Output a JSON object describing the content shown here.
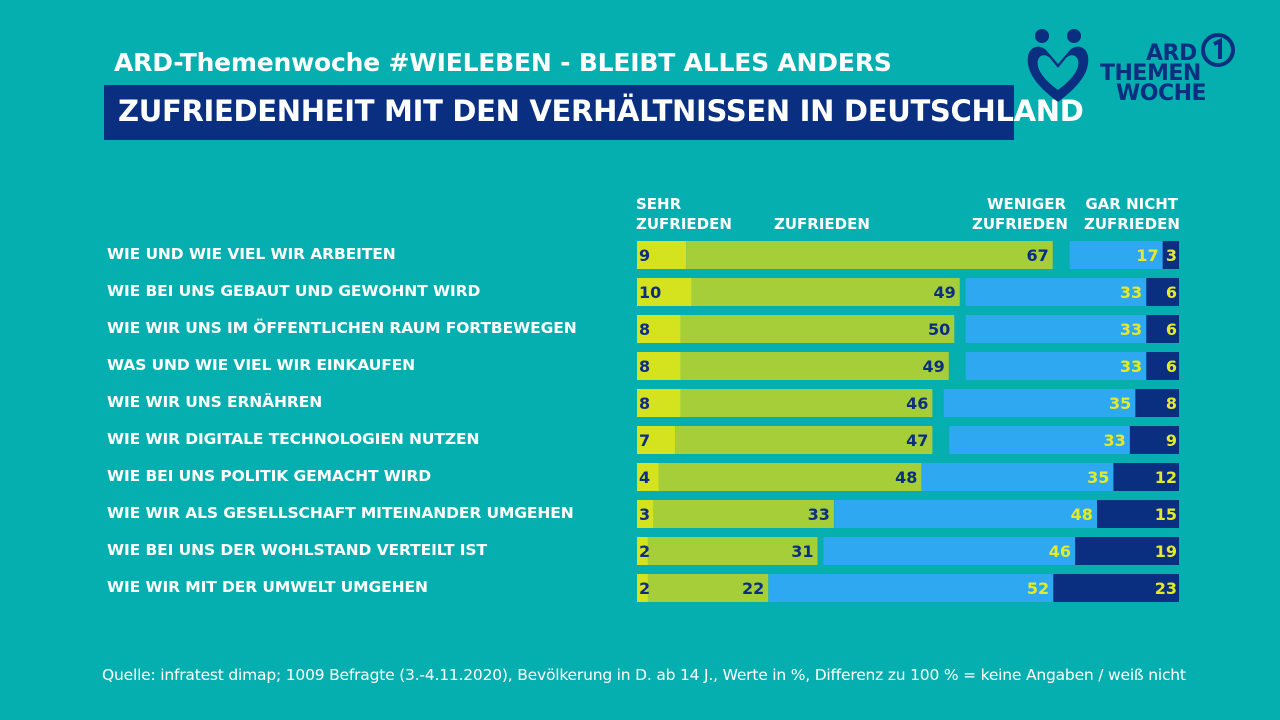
{
  "header": {
    "suptitle": "ARD-Themenwoche #WIELEBEN - BLEIBT ALLES ANDERS",
    "title": "ZUFRIEDENHEIT MIT DEN VERHÄLTNISSEN IN DEUTSCHLAND"
  },
  "logo": {
    "line1": "ARD",
    "line2": "THEMEN",
    "line3": "WOCHE"
  },
  "columns": {
    "sehr_line1": "SEHR",
    "sehr_line2": "ZUFRIEDEN",
    "zufrieden": "ZUFRIEDEN",
    "weniger_line1": "WENIGER",
    "weniger_line2": "ZUFRIEDEN",
    "garnicht_line1": "GAR NICHT",
    "garnicht_line2": "ZUFRIEDEN"
  },
  "colors": {
    "background": "#05AFAF",
    "sehr_zufrieden": "#D4E31E",
    "zufrieden": "#A6CE39",
    "weniger_zufrieden": "#2EA8F0",
    "gar_nicht_zufrieden": "#0B2F80",
    "label_dark": "#0B2F80",
    "label_yellow": "#E4EA2A"
  },
  "chart_data": {
    "type": "bar",
    "orientation": "horizontal",
    "stacked": "diverging",
    "categories": [
      "WIE UND WIE VIEL WIR ARBEITEN",
      "WIE BEI UNS GEBAUT UND GEWOHNT WIRD",
      "WIE WIR UNS IM ÖFFENTLICHEN RAUM FORTBEWEGEN",
      "WAS UND WIE VIEL WIR EINKAUFEN",
      "WIE WIR UNS ERNÄHREN",
      "WIE WIR DIGITALE TECHNOLOGIEN NUTZEN",
      "WIE BEI UNS POLITIK GEMACHT WIRD",
      "WIE WIR ALS GESELLSCHAFT MITEINANDER UMGEHEN",
      "WIE BEI UNS DER WOHLSTAND VERTEILT IST",
      "WIE WIR MIT DER UMWELT UMGEHEN"
    ],
    "series": [
      {
        "name": "SEHR ZUFRIEDEN",
        "values": [
          9,
          10,
          8,
          8,
          8,
          7,
          4,
          3,
          2,
          2
        ]
      },
      {
        "name": "ZUFRIEDEN",
        "values": [
          67,
          49,
          50,
          49,
          46,
          47,
          48,
          33,
          31,
          22
        ]
      },
      {
        "name": "WENIGER ZUFRIEDEN",
        "values": [
          17,
          33,
          33,
          33,
          35,
          33,
          35,
          48,
          46,
          52
        ]
      },
      {
        "name": "GAR NICHT ZUFRIEDEN",
        "values": [
          3,
          6,
          6,
          6,
          8,
          9,
          12,
          15,
          19,
          23
        ]
      }
    ],
    "unit": "%",
    "title": "ZUFRIEDENHEIT MIT DEN VERHÄLTNISSEN IN DEUTSCHLAND"
  },
  "source": "Quelle: infratest dimap; 1009 Befragte (3.-4.11.2020), Bevölkerung in D. ab 14 J., Werte in %, Differenz zu 100 % = keine Angaben / weiß nicht"
}
